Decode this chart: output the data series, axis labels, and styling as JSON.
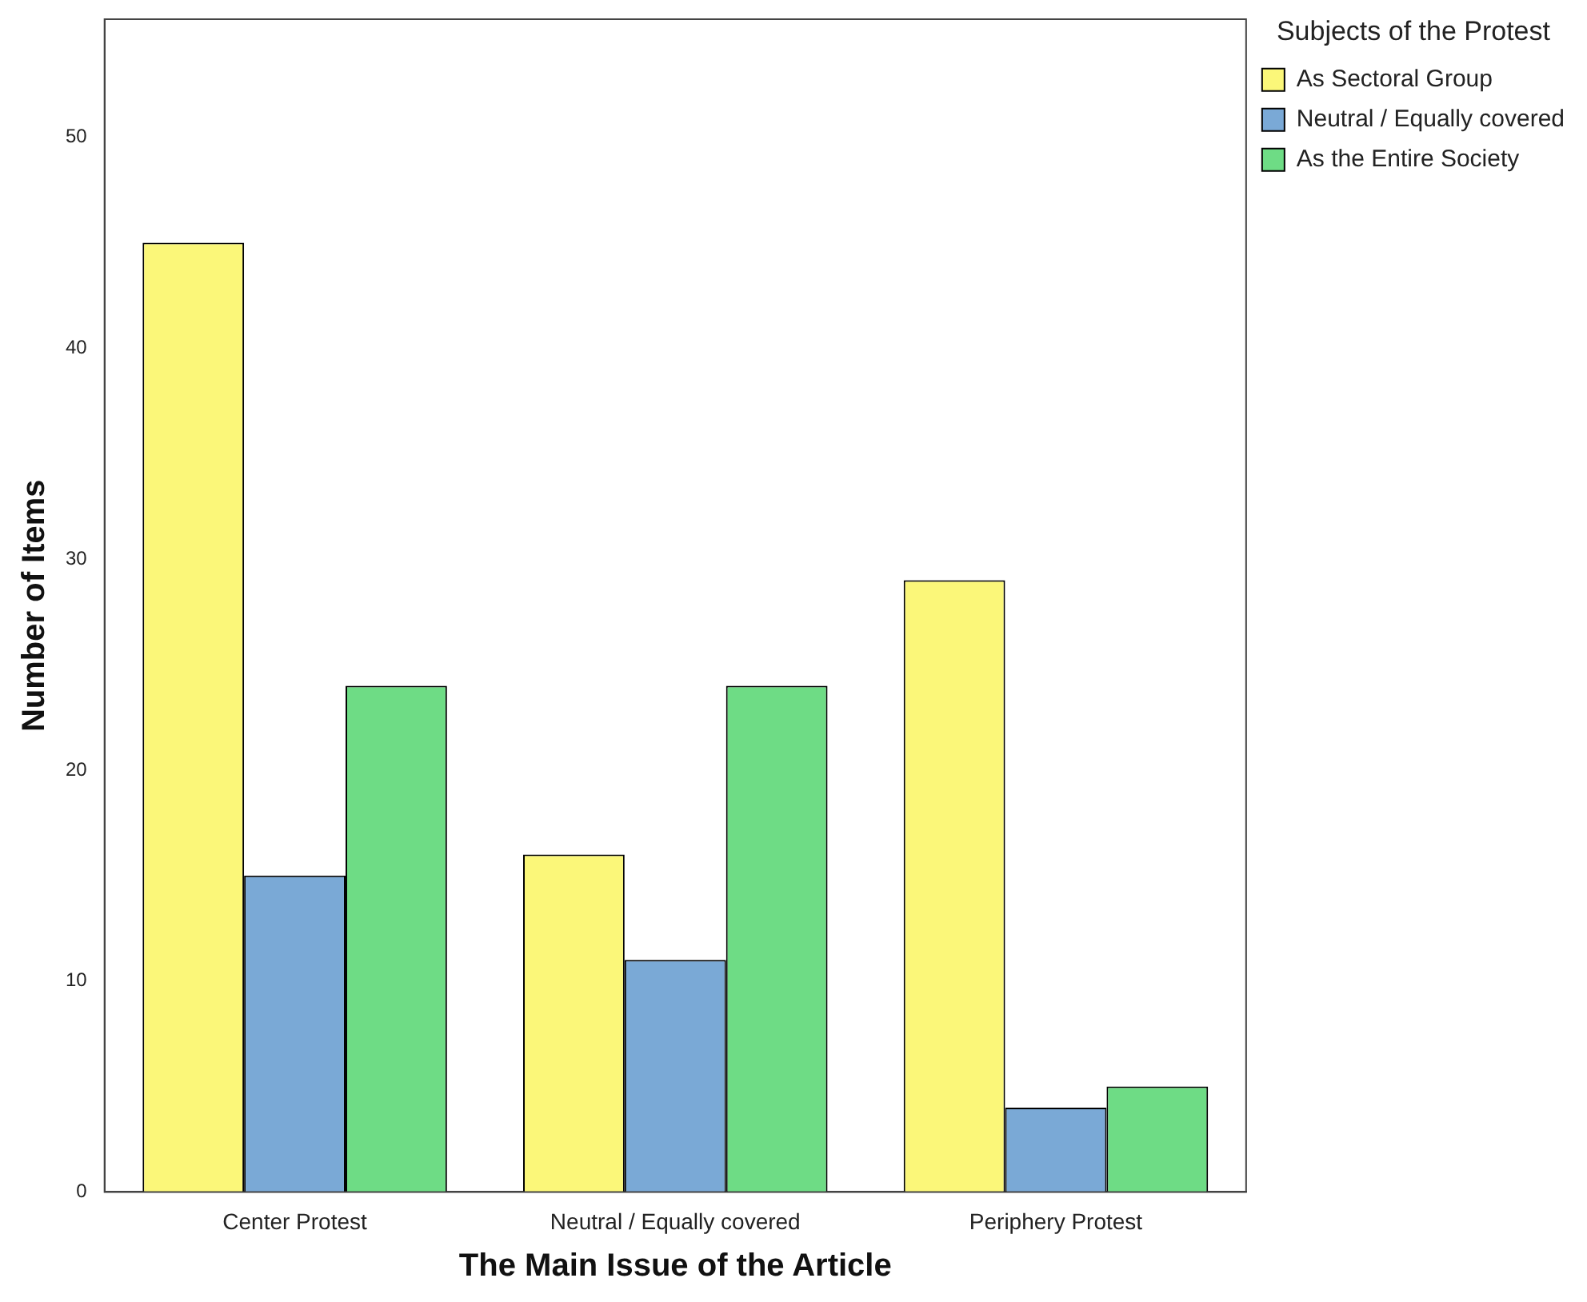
{
  "chart_data": {
    "type": "bar",
    "xlabel": "The Main Issue of the Article",
    "ylabel": "Number of Items",
    "legend_title": "Subjects of the Protest",
    "categories": [
      "Center Protest",
      "Neutral / Equally covered",
      "Periphery Protest"
    ],
    "series": [
      {
        "name": "As Sectoral Group",
        "color": "#fbf779",
        "values": [
          45,
          16,
          29
        ]
      },
      {
        "name": "Neutral / Equally covered",
        "color": "#7aa9d6",
        "values": [
          15,
          11,
          4
        ]
      },
      {
        "name": "As the Entire Society",
        "color": "#6edc85",
        "values": [
          24,
          24,
          5
        ]
      }
    ],
    "ylim": [
      0,
      55.6
    ],
    "yticks": [
      0,
      10,
      20,
      30,
      40,
      50
    ],
    "grid": false,
    "legend": "top right"
  }
}
